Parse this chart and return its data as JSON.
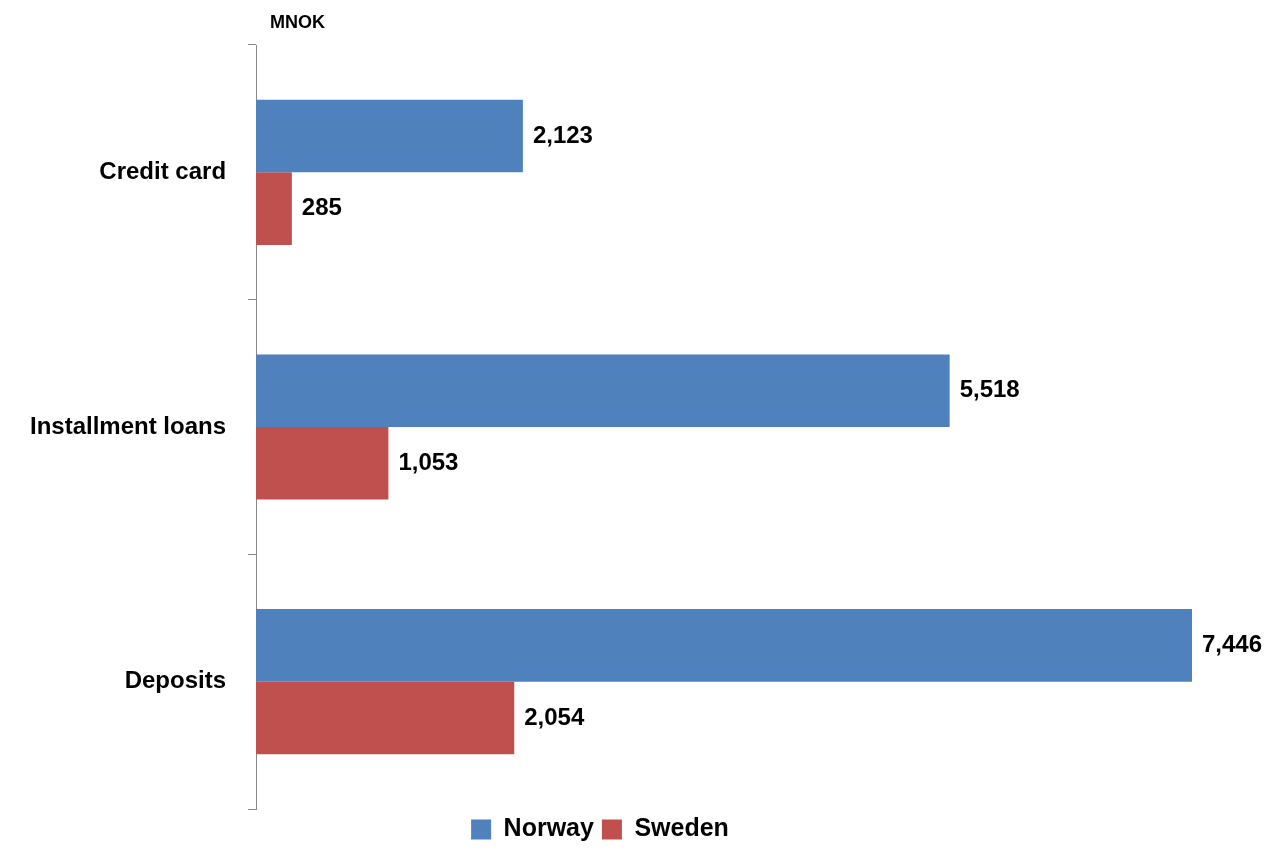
{
  "chart_data": {
    "type": "bar",
    "orientation": "horizontal",
    "categories": [
      "Credit card",
      "Installment loans",
      "Deposits"
    ],
    "series": [
      {
        "name": "Norway",
        "color": "#4f81bd",
        "values": [
          2123,
          5518,
          7446
        ],
        "value_labels": [
          "2,123",
          "5,518",
          "7,446"
        ]
      },
      {
        "name": "Sweden",
        "color": "#c0504d",
        "values": [
          285,
          1053,
          2054
        ],
        "value_labels": [
          "285",
          "1,053",
          "2,054"
        ]
      }
    ],
    "annotations": [
      "MNOK"
    ],
    "legend": "bottom",
    "grid": false,
    "tick_labels": "y"
  }
}
